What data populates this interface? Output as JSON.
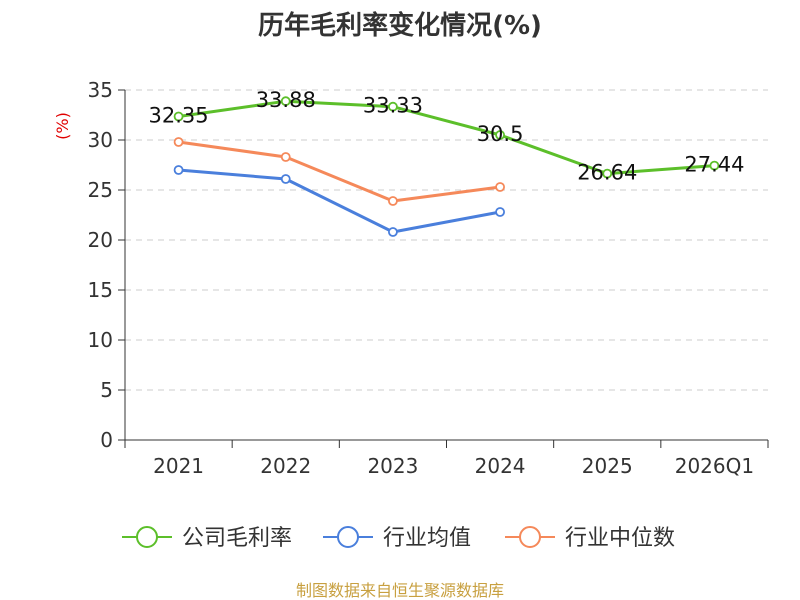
{
  "chart_data": {
    "type": "line",
    "title": "历年毛利率变化情况(%)",
    "ylabel": "(%)",
    "xlabel": "",
    "categories": [
      "2021",
      "2022",
      "2023",
      "2024",
      "2025",
      "2026Q1"
    ],
    "ylim": [
      0,
      35
    ],
    "yticks": [
      0,
      5,
      10,
      15,
      20,
      25,
      30,
      35
    ],
    "grid": true,
    "legend_position": "bottom",
    "series": [
      {
        "name": "公司毛利率",
        "color": "#5cbf2a",
        "values": [
          32.35,
          33.88,
          33.33,
          30.5,
          26.64,
          27.44
        ],
        "labels": [
          "32.35",
          "33.88",
          "33.33",
          "30.5",
          "26.64",
          "27.44"
        ]
      },
      {
        "name": "行业均值",
        "color": "#4a7fdc",
        "values": [
          27.0,
          26.1,
          20.8,
          22.8,
          null,
          null
        ]
      },
      {
        "name": "行业中位数",
        "color": "#f5895a",
        "values": [
          29.8,
          28.3,
          23.9,
          25.3,
          null,
          null
        ]
      }
    ]
  },
  "source": "制图数据来自恒生聚源数据库"
}
